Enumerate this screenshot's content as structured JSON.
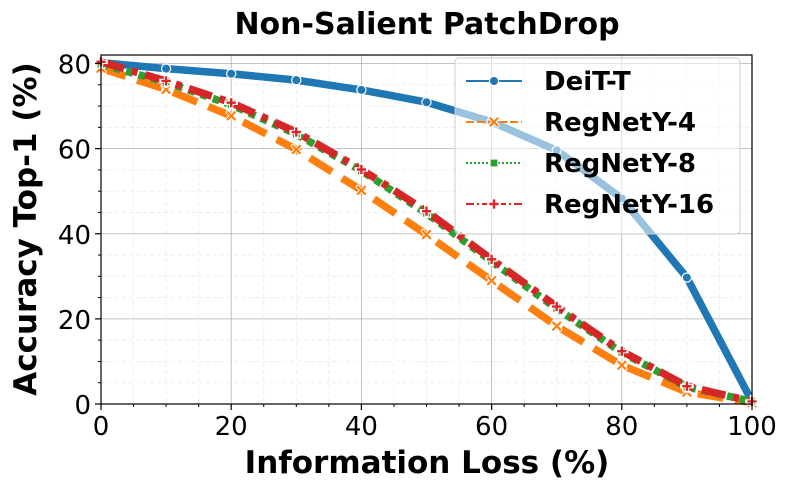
{
  "chart_data": {
    "type": "line",
    "title": "Non-Salient PatchDrop",
    "xlabel": "Information Loss (%)",
    "ylabel": "Accuracy Top-1 (%)",
    "xlim": [
      0,
      100
    ],
    "ylim": [
      0,
      82
    ],
    "xticks": [
      0,
      20,
      40,
      60,
      80,
      100
    ],
    "yticks": [
      0,
      20,
      40,
      60,
      80
    ],
    "grid": true,
    "legend_position": "top-right",
    "x": [
      0,
      10,
      20,
      30,
      40,
      50,
      60,
      70,
      80,
      90,
      100
    ],
    "series": [
      {
        "name": "DeiT-T",
        "color": "#1f77b4",
        "dash": "solid",
        "marker": "circle",
        "values": [
          80.2,
          78.8,
          77.6,
          76.1,
          73.8,
          70.9,
          66.3,
          59.6,
          48.3,
          29.7,
          0.6
        ]
      },
      {
        "name": "RegNetY-4",
        "color": "#ff7f0e",
        "dash": "dashed",
        "marker": "x",
        "values": [
          78.9,
          73.9,
          67.7,
          59.8,
          50.2,
          39.8,
          29.0,
          18.3,
          9.1,
          2.8,
          0.3
        ]
      },
      {
        "name": "RegNetY-8",
        "color": "#2ca02c",
        "dash": "dotted",
        "marker": "square",
        "values": [
          79.8,
          75.6,
          70.3,
          63.4,
          54.8,
          44.8,
          33.5,
          22.4,
          12.1,
          4.0,
          0.6
        ]
      },
      {
        "name": "RegNetY-16",
        "color": "#d62728",
        "dash": "dashdot",
        "marker": "plus",
        "values": [
          80.4,
          75.9,
          70.8,
          63.9,
          55.1,
          45.3,
          34.0,
          22.9,
          12.4,
          4.2,
          0.6
        ]
      }
    ]
  }
}
